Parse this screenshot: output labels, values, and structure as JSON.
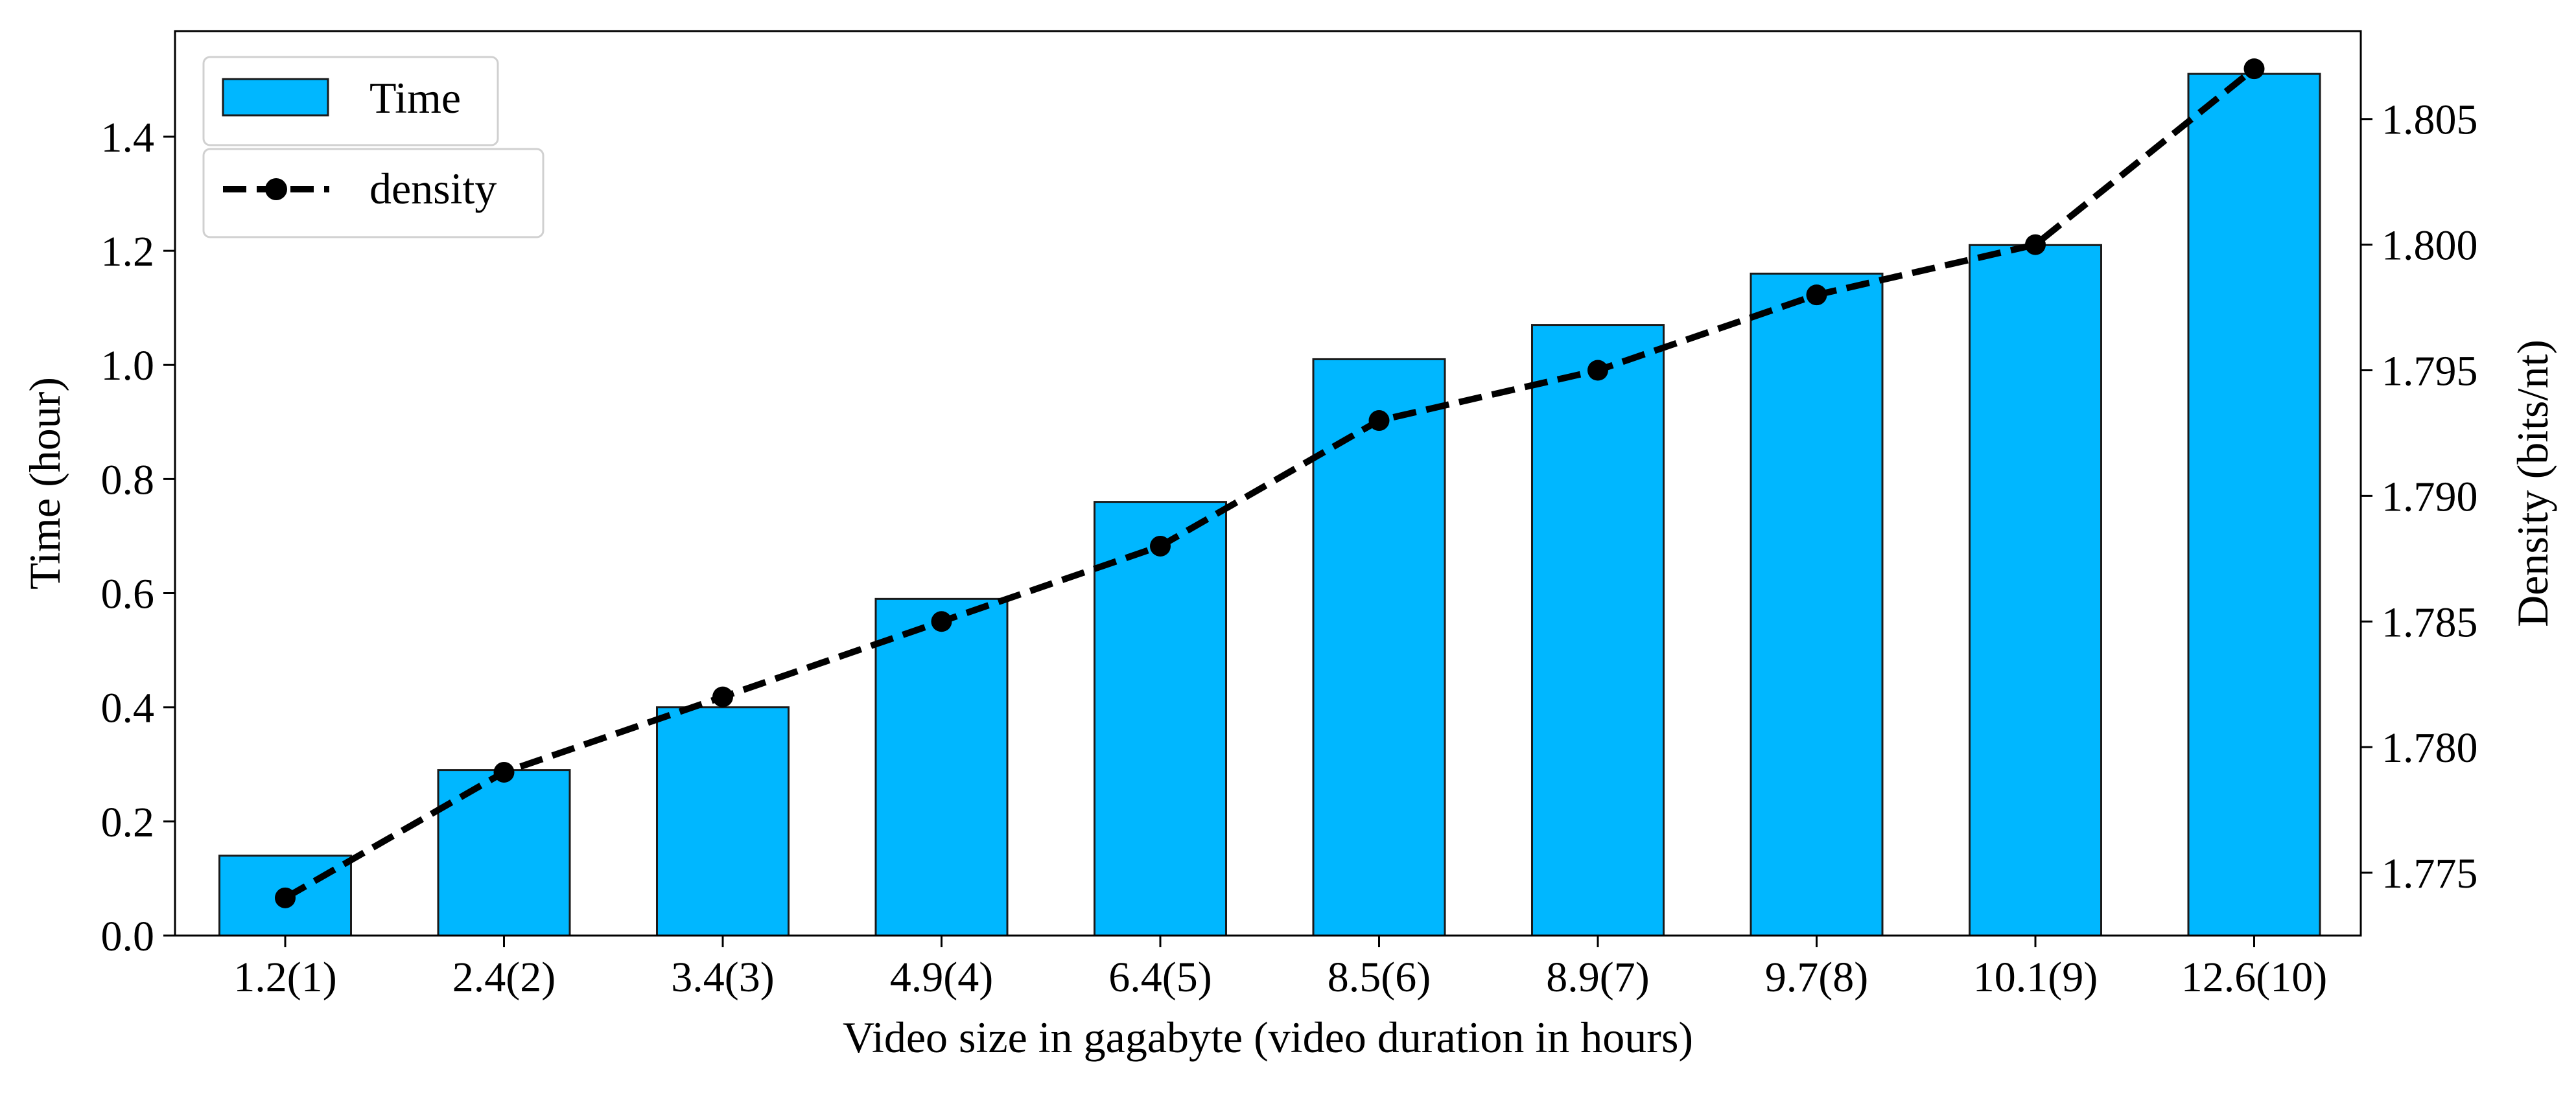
{
  "chart_data": {
    "type": "bar",
    "secondary_type": "line",
    "categories": [
      "1.2(1)",
      "2.4(2)",
      "3.4(3)",
      "4.9(4)",
      "6.4(5)",
      "8.5(6)",
      "8.9(7)",
      "9.7(8)",
      "10.1(9)",
      "12.6(10)"
    ],
    "series": [
      {
        "name": "Time",
        "type": "bar",
        "axis": "left",
        "values": [
          0.14,
          0.29,
          0.4,
          0.59,
          0.76,
          1.01,
          1.07,
          1.16,
          1.21,
          1.51
        ],
        "color": "#00b7ff"
      },
      {
        "name": "density",
        "type": "line",
        "axis": "right",
        "style": "dashed",
        "marker": "circle",
        "values": [
          1.774,
          1.779,
          1.782,
          1.785,
          1.788,
          1.793,
          1.795,
          1.798,
          1.8,
          1.807
        ],
        "color": "#000000"
      }
    ],
    "xlabel": "Video size in gagabyte (video duration in hours)",
    "ylabel": "Time (hour)",
    "y2label": "Density (bits/nt)",
    "ylim": [
      0.0,
      1.585
    ],
    "y2lim": [
      1.7725,
      1.8085
    ],
    "yticks": [
      "0.0",
      "0.2",
      "0.4",
      "0.6",
      "0.8",
      "1.0",
      "1.2",
      "1.4"
    ],
    "y2ticks": [
      "1.775",
      "1.780",
      "1.785",
      "1.790",
      "1.795",
      "1.800",
      "1.805"
    ],
    "grid": false,
    "legend": [
      {
        "label": "Time",
        "position": "top-left"
      },
      {
        "label": "density",
        "position": "top-left"
      }
    ]
  }
}
